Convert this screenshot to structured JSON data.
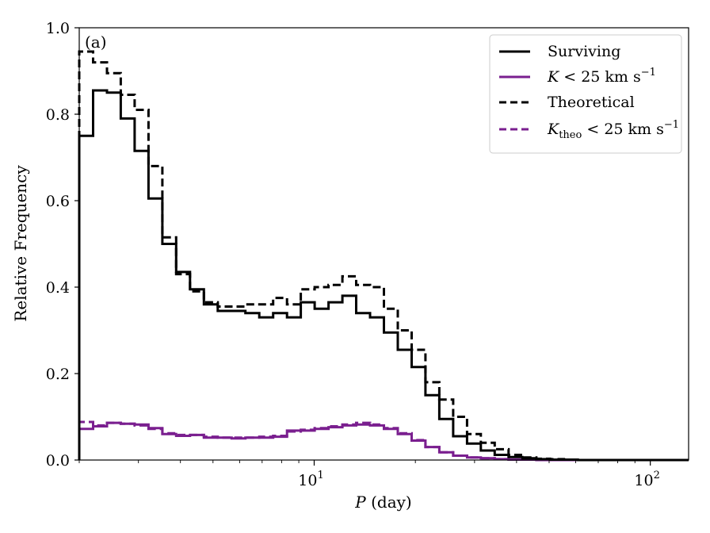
{
  "chart_data": {
    "type": "histogram-step",
    "panel_label": "(a)",
    "xlabel_var": "P",
    "xlabel_unit": " (day)",
    "ylabel": "Relative Frequency",
    "xscale": "log",
    "xlim": [
      2.0,
      130.0
    ],
    "ylim": [
      0.0,
      1.0
    ],
    "xticks": [
      {
        "value": 10,
        "base": "10",
        "exp": "1"
      },
      {
        "value": 100,
        "base": "10",
        "exp": "2"
      }
    ],
    "yticks": [
      "0.0",
      "0.2",
      "0.4",
      "0.6",
      "0.8",
      "1.0"
    ],
    "bin_count": 44,
    "series": [
      {
        "name": "Surviving",
        "color": "#000000",
        "dash": "solid",
        "values": [
          0.75,
          0.855,
          0.85,
          0.79,
          0.715,
          0.605,
          0.5,
          0.435,
          0.395,
          0.36,
          0.345,
          0.345,
          0.34,
          0.33,
          0.34,
          0.33,
          0.365,
          0.35,
          0.365,
          0.38,
          0.34,
          0.33,
          0.295,
          0.255,
          0.215,
          0.15,
          0.095,
          0.055,
          0.038,
          0.022,
          0.012,
          0.007,
          0.004,
          0.002,
          0.001,
          0.001,
          0.0,
          0.0,
          0.0,
          0.0,
          0.0,
          0.0,
          0.0,
          0.0
        ]
      },
      {
        "name": "K < 25 km s−1",
        "legend_var": "K",
        "legend_sub": "",
        "legend_text": " < 25 km s",
        "legend_sup": "−1",
        "color": "#7a1f8f",
        "dash": "solid",
        "values": [
          0.072,
          0.078,
          0.086,
          0.084,
          0.082,
          0.074,
          0.06,
          0.056,
          0.058,
          0.052,
          0.052,
          0.05,
          0.052,
          0.052,
          0.054,
          0.068,
          0.068,
          0.072,
          0.076,
          0.08,
          0.082,
          0.08,
          0.072,
          0.06,
          0.045,
          0.03,
          0.018,
          0.01,
          0.006,
          0.004,
          0.002,
          0.001,
          0.001,
          0.0,
          0.0,
          0.0,
          0.0,
          0.0,
          0.0,
          0.0,
          0.0,
          0.0,
          0.0,
          0.0
        ]
      },
      {
        "name": "Theoretical",
        "color": "#000000",
        "dash": "dashed",
        "values": [
          0.945,
          0.92,
          0.895,
          0.845,
          0.81,
          0.68,
          0.515,
          0.43,
          0.39,
          0.365,
          0.355,
          0.355,
          0.36,
          0.36,
          0.375,
          0.36,
          0.395,
          0.4,
          0.405,
          0.425,
          0.405,
          0.4,
          0.35,
          0.3,
          0.255,
          0.18,
          0.14,
          0.1,
          0.06,
          0.04,
          0.025,
          0.012,
          0.006,
          0.003,
          0.002,
          0.001,
          0.0,
          0.0,
          0.0,
          0.0,
          0.0,
          0.0,
          0.0,
          0.0
        ]
      },
      {
        "name": "K_theo < 25 km s−1",
        "legend_var": "K",
        "legend_sub": "theo",
        "legend_text": " < 25 km s",
        "legend_sup": "−1",
        "color": "#7a1f8f",
        "dash": "dashed",
        "values": [
          0.088,
          0.08,
          0.086,
          0.084,
          0.08,
          0.072,
          0.062,
          0.058,
          0.058,
          0.054,
          0.052,
          0.052,
          0.052,
          0.054,
          0.056,
          0.066,
          0.07,
          0.074,
          0.078,
          0.082,
          0.086,
          0.082,
          0.074,
          0.062,
          0.046,
          0.03,
          0.018,
          0.01,
          0.006,
          0.004,
          0.002,
          0.001,
          0.001,
          0.0,
          0.0,
          0.0,
          0.0,
          0.0,
          0.0,
          0.0,
          0.0,
          0.0,
          0.0,
          0.0
        ]
      }
    ],
    "legend": [
      "Surviving",
      "K < 25 km s−1",
      "Theoretical",
      "K_theo < 25 km s−1"
    ],
    "legend_position": "top-right"
  }
}
